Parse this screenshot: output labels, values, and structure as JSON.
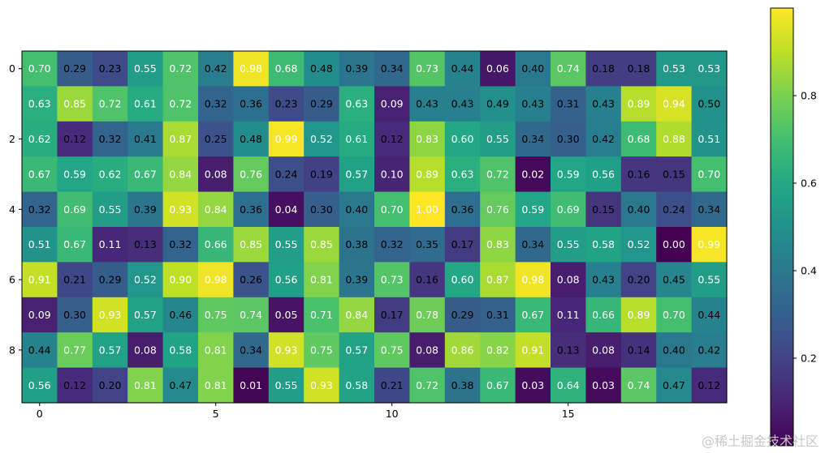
{
  "chart_data": {
    "type": "heatmap",
    "colormap": "viridis",
    "rows": 10,
    "cols": 20,
    "values": [
      [
        0.7,
        0.29,
        0.23,
        0.55,
        0.72,
        0.42,
        0.98,
        0.68,
        0.48,
        0.39,
        0.34,
        0.73,
        0.44,
        0.06,
        0.4,
        0.74,
        0.18,
        0.18,
        0.53,
        0.53
      ],
      [
        0.63,
        0.85,
        0.72,
        0.61,
        0.72,
        0.32,
        0.36,
        0.23,
        0.29,
        0.63,
        0.09,
        0.43,
        0.43,
        0.49,
        0.43,
        0.31,
        0.43,
        0.89,
        0.94,
        0.5
      ],
      [
        0.62,
        0.12,
        0.32,
        0.41,
        0.87,
        0.25,
        0.48,
        0.99,
        0.52,
        0.61,
        0.12,
        0.83,
        0.6,
        0.55,
        0.34,
        0.3,
        0.42,
        0.68,
        0.88,
        0.51
      ],
      [
        0.67,
        0.59,
        0.62,
        0.67,
        0.84,
        0.08,
        0.76,
        0.24,
        0.19,
        0.57,
        0.1,
        0.89,
        0.63,
        0.72,
        0.02,
        0.59,
        0.56,
        0.16,
        0.15,
        0.7
      ],
      [
        0.32,
        0.69,
        0.55,
        0.39,
        0.93,
        0.84,
        0.36,
        0.04,
        0.3,
        0.4,
        0.7,
        1.0,
        0.36,
        0.76,
        0.59,
        0.69,
        0.15,
        0.4,
        0.24,
        0.34
      ],
      [
        0.51,
        0.67,
        0.11,
        0.13,
        0.32,
        0.66,
        0.85,
        0.55,
        0.85,
        0.38,
        0.32,
        0.35,
        0.17,
        0.83,
        0.34,
        0.55,
        0.58,
        0.52,
        0.0,
        0.99
      ],
      [
        0.91,
        0.21,
        0.29,
        0.52,
        0.9,
        0.98,
        0.26,
        0.56,
        0.81,
        0.39,
        0.73,
        0.16,
        0.6,
        0.87,
        0.98,
        0.08,
        0.43,
        0.2,
        0.45,
        0.55
      ],
      [
        0.09,
        0.3,
        0.93,
        0.57,
        0.46,
        0.75,
        0.74,
        0.05,
        0.71,
        0.84,
        0.17,
        0.78,
        0.29,
        0.31,
        0.67,
        0.11,
        0.66,
        0.89,
        0.7,
        0.44
      ],
      [
        0.44,
        0.77,
        0.57,
        0.08,
        0.58,
        0.81,
        0.34,
        0.93,
        0.75,
        0.57,
        0.75,
        0.08,
        0.86,
        0.82,
        0.91,
        0.13,
        0.08,
        0.14,
        0.4,
        0.42
      ],
      [
        0.56,
        0.12,
        0.2,
        0.81,
        0.47,
        0.81,
        0.01,
        0.55,
        0.93,
        0.58,
        0.21,
        0.72,
        0.38,
        0.67,
        0.03,
        0.64,
        0.03,
        0.74,
        0.47,
        0.12
      ]
    ],
    "x_ticks": [
      0,
      5,
      10,
      15
    ],
    "y_ticks": [
      0,
      2,
      4,
      6,
      8
    ],
    "colorbar": {
      "range": [
        0.0,
        1.0
      ],
      "ticks": [
        0.2,
        0.4,
        0.6,
        0.8
      ],
      "tick_labels": [
        "0.2",
        "0.4",
        "0.6",
        "0.8"
      ]
    },
    "annotation_format": "0.00",
    "title": "",
    "xlabel": "",
    "ylabel": ""
  },
  "watermark": "@稀土掘金技术社区"
}
